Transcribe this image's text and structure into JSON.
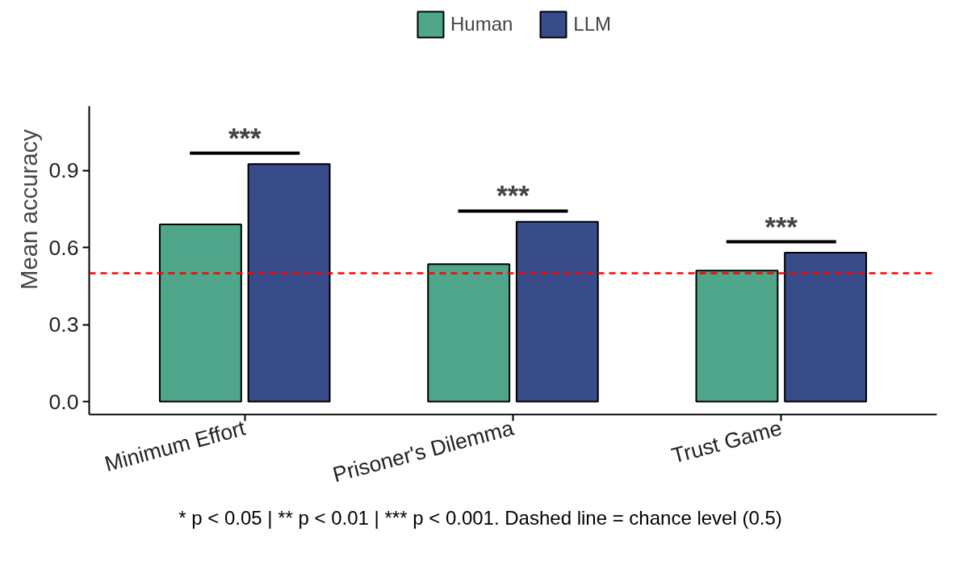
{
  "chart_data": {
    "type": "bar",
    "ylabel": "Mean accuracy",
    "categories": [
      "Minimum Effort",
      "Prisoner's Dilemma",
      "Trust Game"
    ],
    "series": [
      {
        "name": "Human",
        "color": "#4fa68a",
        "values": [
          0.69,
          0.535,
          0.51
        ]
      },
      {
        "name": "LLM",
        "color": "#374c89",
        "values": [
          0.925,
          0.7,
          0.58
        ]
      }
    ],
    "ylim": [
      -0.05,
      1.15
    ],
    "yticks": [
      {
        "value": 0,
        "label": "0.0"
      },
      0.3,
      0.6,
      0.9
    ],
    "ref_lines": [
      {
        "axis": "y",
        "value": 0.5,
        "color": "#ff0000",
        "line_style": "dashed"
      }
    ],
    "annotations": [
      "***",
      "***",
      "***",
      "* p < 0.05 | ** p < 0.01 | *** p < 0.001. Dashed line = chance level (0.5)"
    ],
    "grid": false,
    "legend": "top"
  }
}
